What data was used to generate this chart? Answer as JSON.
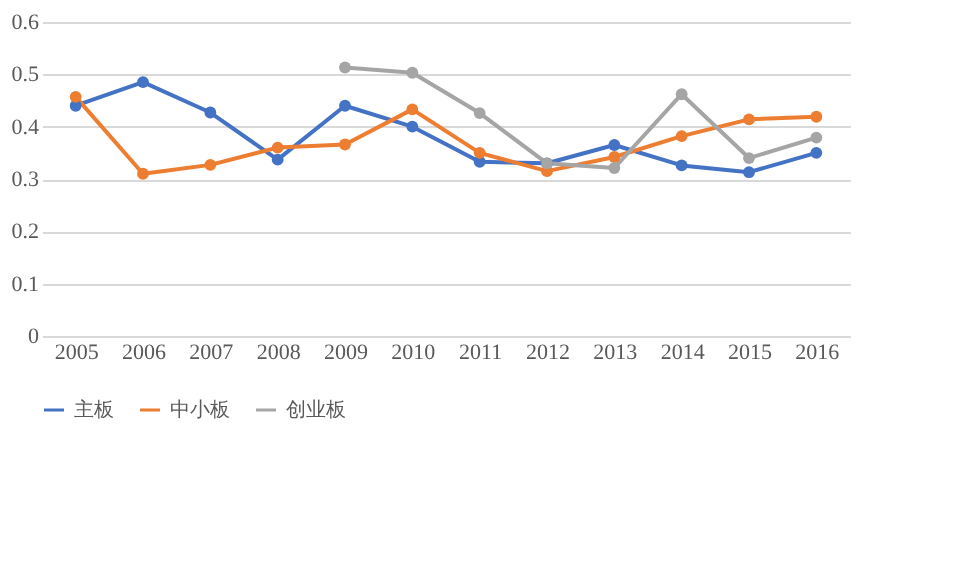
{
  "chart_data": {
    "type": "line",
    "categories": [
      "2005",
      "2006",
      "2007",
      "2008",
      "2009",
      "2010",
      "2011",
      "2012",
      "2013",
      "2014",
      "2015",
      "2016"
    ],
    "series": [
      {
        "name": "主板",
        "color": "#4472c4",
        "values": [
          0.44,
          0.485,
          0.427,
          0.337,
          0.44,
          0.4,
          0.333,
          0.33,
          0.365,
          0.326,
          0.313,
          0.35
        ]
      },
      {
        "name": "中小板",
        "color": "#ed7d31",
        "values": [
          0.457,
          0.31,
          0.327,
          0.36,
          0.366,
          0.433,
          0.35,
          0.315,
          0.342,
          0.382,
          0.414,
          0.419
        ]
      },
      {
        "name": "创业板",
        "color": "#a5a5a5",
        "values": [
          null,
          null,
          null,
          null,
          0.513,
          0.503,
          0.426,
          0.33,
          0.321,
          0.462,
          0.34,
          0.379
        ]
      }
    ],
    "ylim": [
      0,
      0.6
    ],
    "yticks": [
      0,
      0.1,
      0.2,
      0.3,
      0.4,
      0.5,
      0.6
    ],
    "grid": "y",
    "legend": "bottom",
    "marker": "circle",
    "line_style": "solid"
  }
}
